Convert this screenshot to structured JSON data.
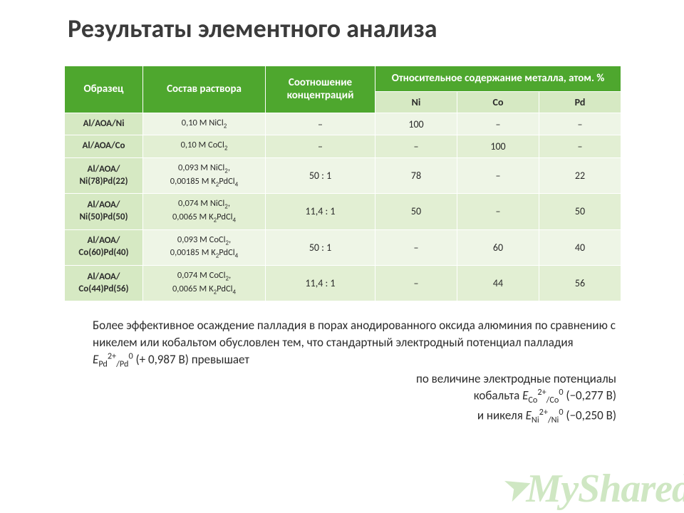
{
  "title": "Результаты элементного анализа",
  "table": {
    "headers": {
      "sample": "Образец",
      "composition": "Состав раствора",
      "ratio": "Соотношение концентраций",
      "relative": "Относительное содержание металла, атом. %",
      "ni": "Ni",
      "co": "Co",
      "pd": "Pd"
    },
    "rows": [
      {
        "sample": "Al/АОА/Ni",
        "comp_html": "0,10 М NiCl<sub>2</sub>",
        "ratio": "–",
        "ni": "100",
        "co": "–",
        "pd": "–",
        "alt": false
      },
      {
        "sample": "Al/АОА/Co",
        "comp_html": "0,10 М CoCl<sub>2</sub>",
        "ratio": "–",
        "ni": "–",
        "co": "100",
        "pd": "–",
        "alt": true
      },
      {
        "sample": "Al/АОА/ Ni(78)Pd(22)",
        "comp_html": "0,093 М NiCl<sub>2</sub>,<br>0,00185 М K<sub>2</sub>PdCl<sub>4</sub>",
        "ratio": "50 : 1",
        "ni": "78",
        "co": "–",
        "pd": "22",
        "alt": false
      },
      {
        "sample": "Al/АОА/ Ni(50)Pd(50)",
        "comp_html": "0,074 М NiCl<sub>2</sub>,<br>0,0065 М K<sub>2</sub>PdCl<sub>4</sub>",
        "ratio": "11,4 : 1",
        "ni": "50",
        "co": "–",
        "pd": "50",
        "alt": true
      },
      {
        "sample": "Al/АОА/ Co(60)Pd(40)",
        "comp_html": "0,093 М CoCl<sub>2</sub>,<br>0,00185 М K<sub>2</sub>PdCl<sub>4</sub>",
        "ratio": "50 : 1",
        "ni": "–",
        "co": "60",
        "pd": "40",
        "alt": false
      },
      {
        "sample": "Al/АОА/ Co(44)Pd(56)",
        "comp_html": "0,074 М CoCl<sub>2</sub>,<br>0,0065 М K<sub>2</sub>PdCl<sub>4</sub>",
        "ratio": "11,4 : 1",
        "ni": "–",
        "co": "44",
        "pd": "56",
        "alt": true
      }
    ]
  },
  "body_text": {
    "p1": "Более эффективное осаждение палладия в порах анодированного оксида алюминия по сравнению с никелем или кобальтом обусловлен тем, что стандартный электродный потенциал",
    "p2_html": "палладия <span class=\"italic\">E</span><sub>Pd</sub><sup>2+</sup><sub>/Pd</sub><sup>0</sup> (+ 0,987 В) превышает",
    "p3": "по величине электродные потенциалы",
    "p4_html": "кобальта <span class=\"italic\">E</span><sub>Co</sub><sup>2+</sup><sub>/Co</sub><sup>0</sup> (−0,277 В)",
    "p5_html": "и никеля <span class=\"italic\">E</span><sub>Ni</sub><sup>2+</sup><sub>/Ni</sub><sup>0</sup> (−0,250 В)"
  },
  "watermark": "MyShared",
  "colors": {
    "header_bg": "#4ea72e",
    "subhdr_bg": "#d6e9c3",
    "row_bg": "#eef5e6",
    "row_bg_alt": "#e2efd3",
    "border": "#ffffff",
    "title_color": "#3b3b3b",
    "watermark_color": "#cfe7c3"
  }
}
